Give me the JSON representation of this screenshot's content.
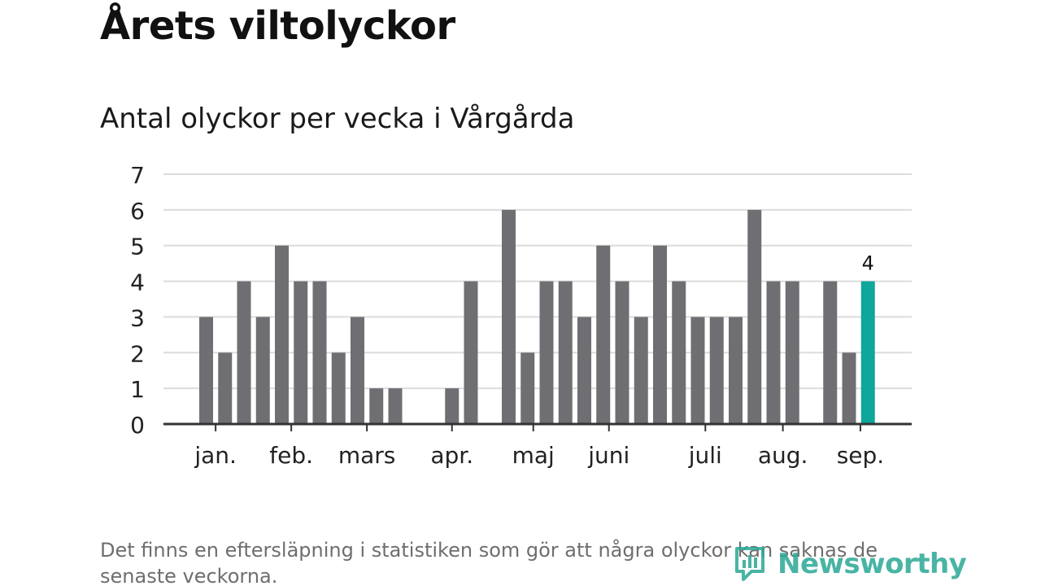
{
  "title": "Årets viltolyckor",
  "subtitle": "Antal olyckor per vecka i Vårgårda",
  "footnote": "Det finns en eftersläpning i statistiken som gör att några olyckor kan saknas de senaste veckorna.",
  "logo_text": "Newsworthy",
  "colors": {
    "bar": "#6f6e73",
    "highlight": "#0fa69b",
    "grid": "#dcdcdc",
    "axis": "#333333",
    "logo": "#2aa795"
  },
  "chart_data": {
    "type": "bar",
    "title": "Antal olyckor per vecka i Vårgårda",
    "xlabel": "",
    "ylabel": "",
    "ylim": [
      0,
      7
    ],
    "yticks": [
      0,
      1,
      2,
      3,
      4,
      5,
      6,
      7
    ],
    "grid": true,
    "week_values": [
      3,
      2,
      4,
      3,
      5,
      4,
      4,
      2,
      3,
      1,
      1,
      0,
      0,
      1,
      4,
      0,
      6,
      2,
      4,
      4,
      3,
      5,
      4,
      3,
      5,
      4,
      3,
      3,
      3,
      6,
      4,
      4,
      0,
      4,
      2,
      4
    ],
    "highlight_index": 35,
    "highlight_label": "4",
    "month_ticks": [
      {
        "label": "jan.",
        "week": 0.5
      },
      {
        "label": "feb.",
        "week": 4.5
      },
      {
        "label": "mars",
        "week": 8.5
      },
      {
        "label": "apr.",
        "week": 13.0
      },
      {
        "label": "maj",
        "week": 17.3
      },
      {
        "label": "juni",
        "week": 21.3
      },
      {
        "label": "juli",
        "week": 26.4
      },
      {
        "label": "aug.",
        "week": 30.5
      },
      {
        "label": "sep.",
        "week": 34.6
      }
    ]
  }
}
